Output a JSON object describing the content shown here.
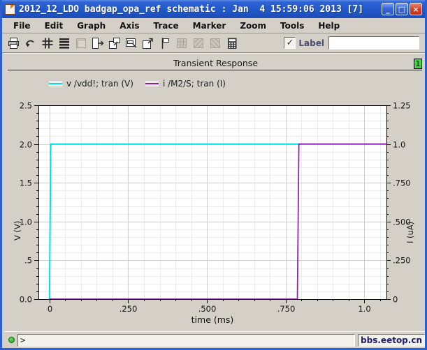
{
  "window": {
    "title": "2012_12_LDO badgap_opa_ref schematic : Jan  4 15:59:06 2013 [7]",
    "minimize_label": "_",
    "maximize_label": "□",
    "close_label": "×"
  },
  "menu": {
    "items": [
      "File",
      "Edit",
      "Graph",
      "Axis",
      "Trace",
      "Marker",
      "Zoom",
      "Tools",
      "Help"
    ]
  },
  "toolbar": {
    "icons": [
      {
        "name": "print-icon",
        "disabled": false
      },
      {
        "name": "undo-icon",
        "disabled": false
      },
      {
        "name": "grid-icon",
        "disabled": false
      },
      {
        "name": "strip-chart-icon",
        "disabled": false
      },
      {
        "name": "panel-icon",
        "disabled": true
      },
      {
        "name": "open-subwindow-icon",
        "disabled": false
      },
      {
        "name": "new-window-icon",
        "disabled": false
      },
      {
        "name": "label-window-icon",
        "disabled": false
      },
      {
        "name": "export-window-icon",
        "disabled": false
      },
      {
        "name": "marker-icon",
        "disabled": false
      },
      {
        "name": "table-icon",
        "disabled": true
      },
      {
        "name": "zoom-x-icon",
        "disabled": true
      },
      {
        "name": "zoom-y-icon",
        "disabled": true
      },
      {
        "name": "calculator-icon",
        "disabled": false
      }
    ],
    "label_checkbox": {
      "checked": true,
      "check_glyph": "✓",
      "label": "Label"
    },
    "label_value": ""
  },
  "graph": {
    "title": "Transient Response",
    "badge": "1"
  },
  "statusbar": {
    "prompt": ">",
    "watermark": "bbs.eetop.cn"
  },
  "colors": {
    "vdd_trace": "#00e0e0",
    "current_trace": "#8a1fae",
    "plot_bg": "#ffffff",
    "grid_minor": "#ebebeb",
    "grid_major": "#cfcfcf",
    "frame": "#000000",
    "badge_green": "#3ad83a"
  },
  "chart_data": {
    "type": "line",
    "title": "Transient Response",
    "xlabel": "time (ms)",
    "xlim": [
      -0.035,
      1.07
    ],
    "x_major_ticks": [
      {
        "v": 0,
        "label": "0"
      },
      {
        "v": 0.25,
        "label": ".250"
      },
      {
        "v": 0.5,
        "label": ".500"
      },
      {
        "v": 0.75,
        "label": ".750"
      },
      {
        "v": 1.0,
        "label": "1.0"
      }
    ],
    "x_minor_step": 0.05,
    "grid": true,
    "legend_position": "top-left",
    "left_axis": {
      "label": "V (V)",
      "lim": [
        0,
        2.5
      ],
      "minor_step": 0.1,
      "color": "#00e0e0",
      "ticks": [
        {
          "v": 0.0,
          "label": "0.0"
        },
        {
          "v": 0.5,
          "label": ".5"
        },
        {
          "v": 1.0,
          "label": "1.0"
        },
        {
          "v": 1.5,
          "label": "1.5"
        },
        {
          "v": 2.0,
          "label": "2.0"
        },
        {
          "v": 2.5,
          "label": "2.5"
        }
      ]
    },
    "right_axis": {
      "label": "I (uA)",
      "lim": [
        0,
        1.25
      ],
      "minor_step": 0.05,
      "color": "#8a1fae",
      "ticks": [
        {
          "v": 0,
          "label": "0"
        },
        {
          "v": 0.25,
          "label": ".250"
        },
        {
          "v": 0.5,
          "label": ".500"
        },
        {
          "v": 0.75,
          "label": ".750"
        },
        {
          "v": 1.0,
          "label": "1.0"
        },
        {
          "v": 1.25,
          "label": "1.25"
        }
      ]
    },
    "series": [
      {
        "name": "v /vdd!; tran (V)",
        "color": "#00e0e0",
        "axis": "left",
        "points": [
          [
            0,
            0
          ],
          [
            0.004,
            2.0
          ],
          [
            1.07,
            2.0
          ]
        ]
      },
      {
        "name": "i /M2/S; tran (I)",
        "color": "#8a1fae",
        "axis": "right",
        "points": [
          [
            0,
            0
          ],
          [
            0.787,
            0
          ],
          [
            0.792,
            1.0
          ],
          [
            1.07,
            1.0
          ]
        ]
      }
    ]
  }
}
